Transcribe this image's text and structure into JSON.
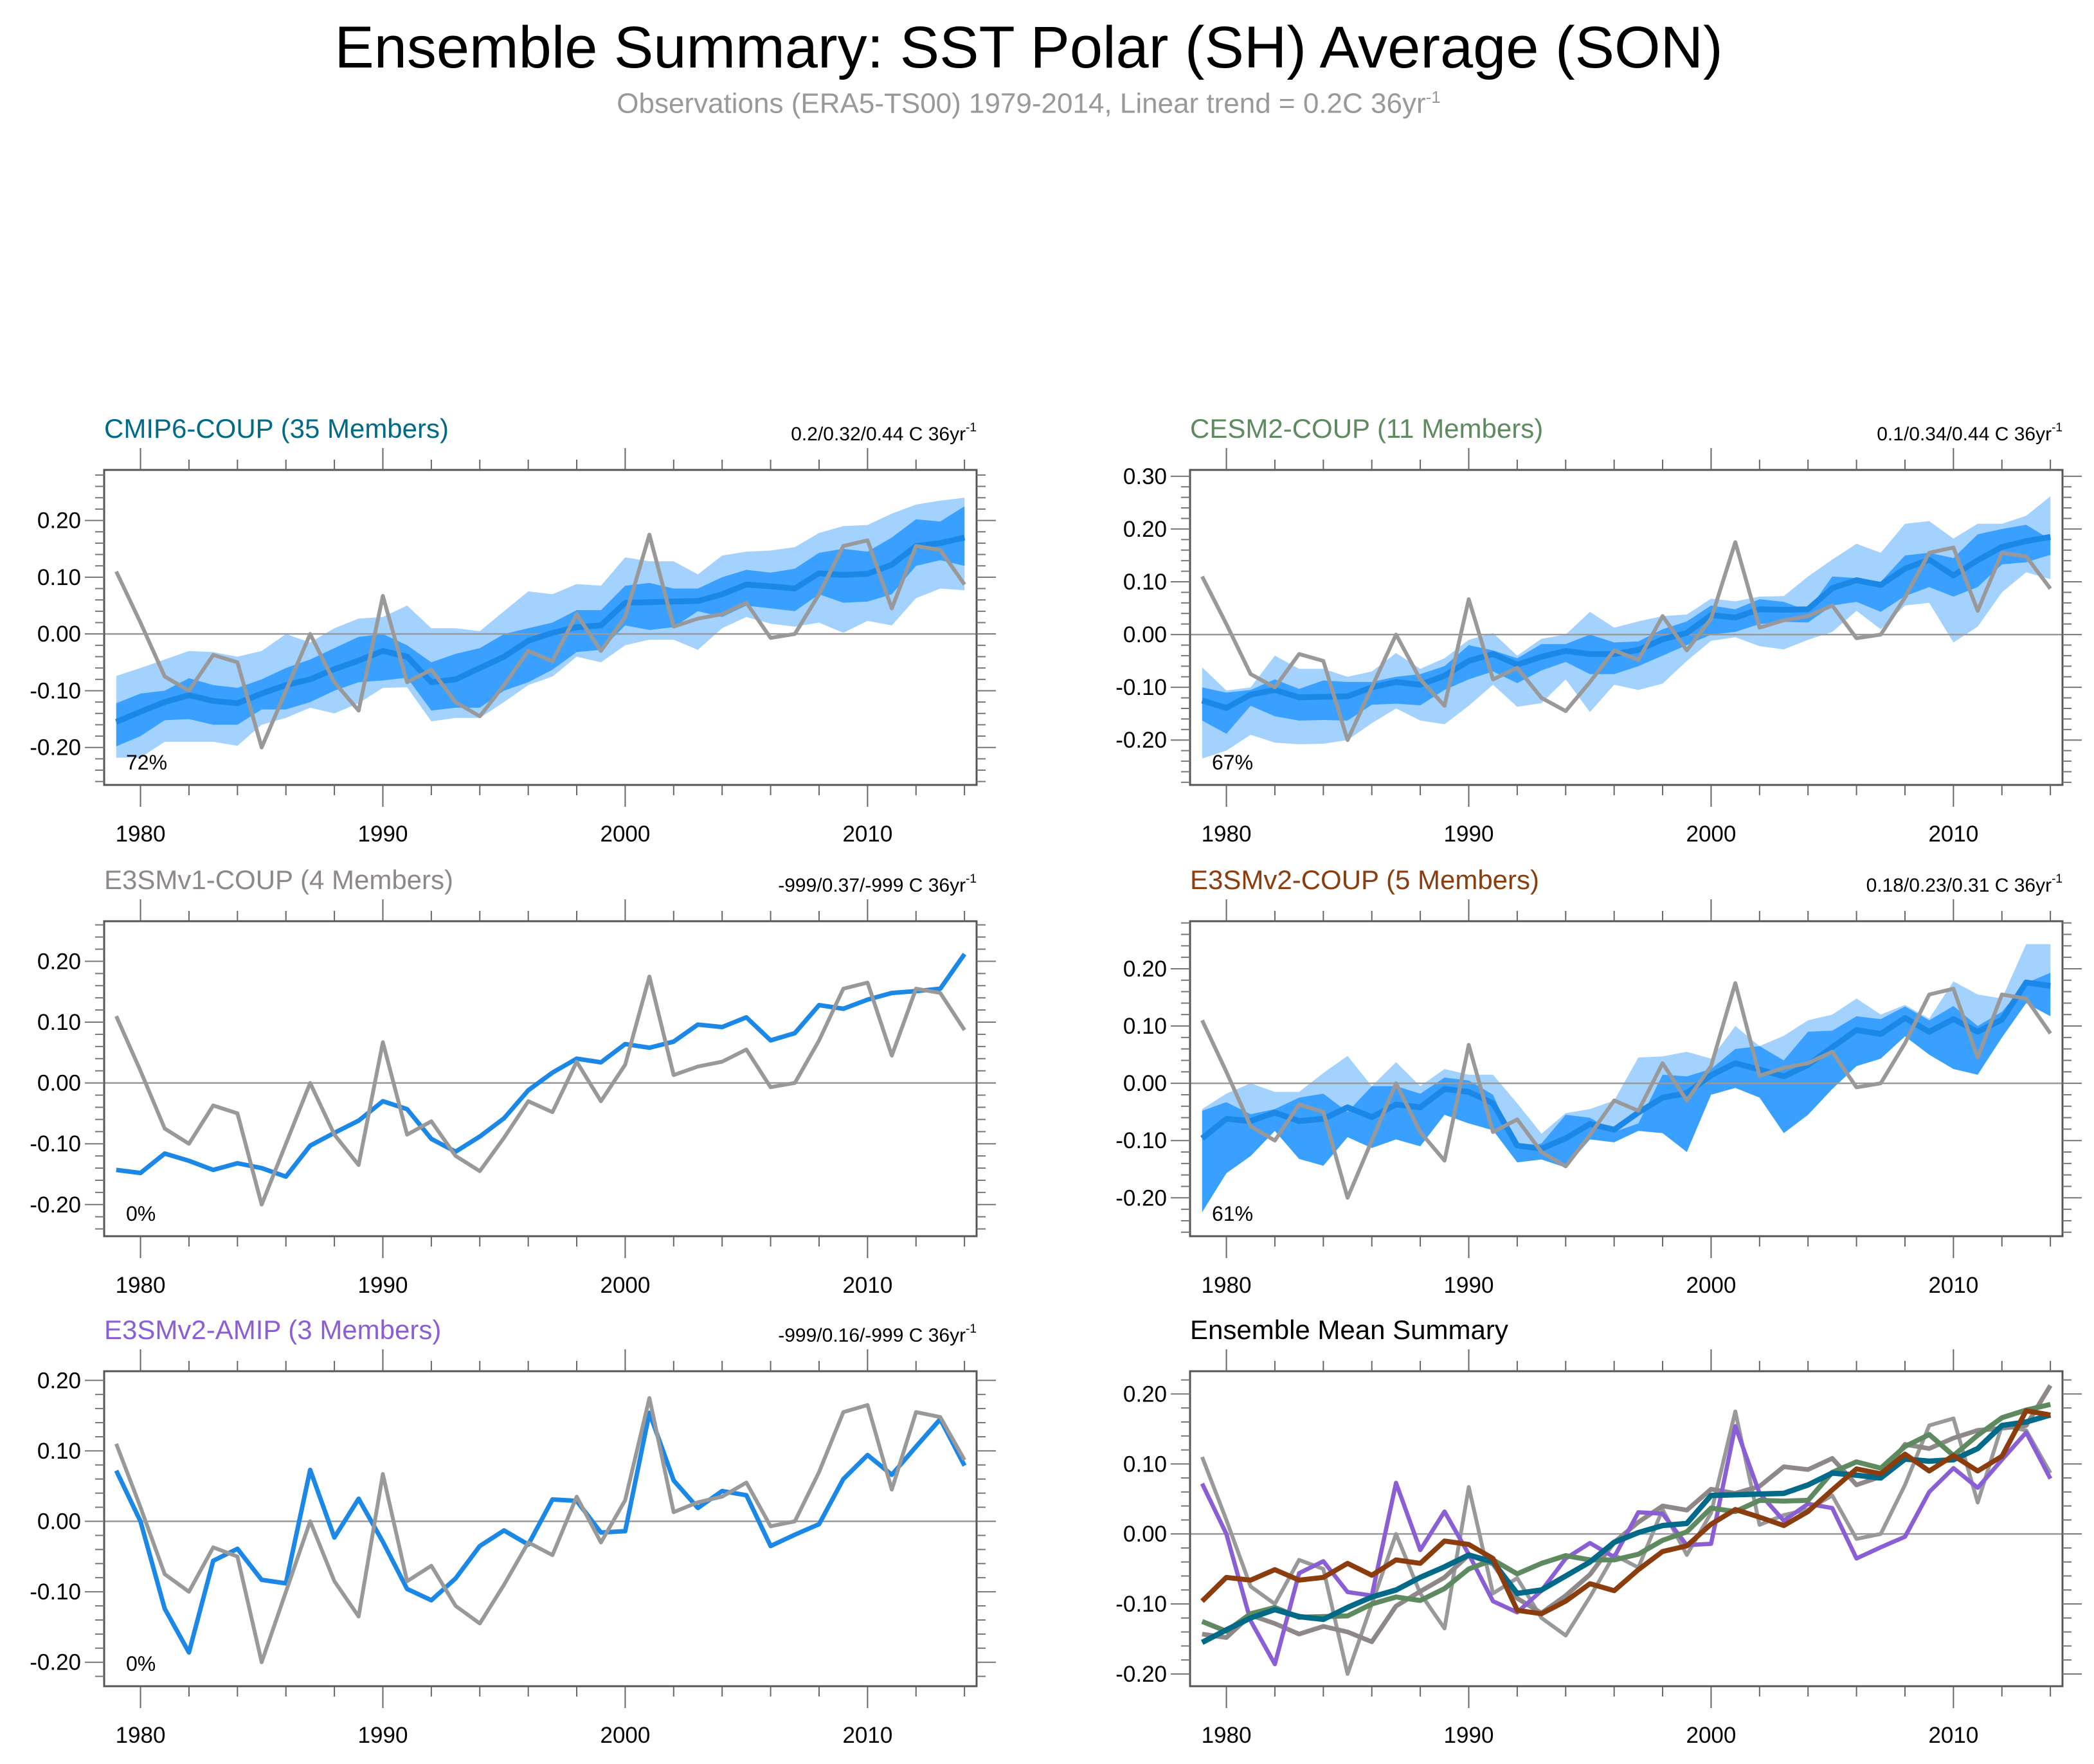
{
  "title": "Ensemble Summary: SST Polar (SH) Average (SON)",
  "subtitle": {
    "text": "Observations (ERA5-TS00) 1979-2014, Linear trend = 0.2C 36yr",
    "sup": "-1"
  },
  "colors": {
    "obs": "#999999",
    "mean": "#1b87e6",
    "band_inner": "#39a0ff",
    "band_outer": "#a3d2ff",
    "frame": "#555555"
  },
  "chart_data": [
    {
      "type": "line",
      "title": "CMIP6-COUP (35 Members)",
      "title_color": "#006a88",
      "trend": {
        "text": "0.2/0.32/0.44 C 36yr",
        "sup": "-1"
      },
      "percent": "72%",
      "x_start": 1979,
      "xlim": [
        1978.5,
        2014.5
      ],
      "ylim": [
        -0.266,
        0.289
      ],
      "xtick_labels": [
        "1980",
        "1990",
        "2000",
        "2010"
      ],
      "ytick_labels": [
        "-0.20",
        "-0.10",
        "0.00",
        "0.10",
        "0.20"
      ],
      "obs": [
        0.11,
        0.02,
        -0.075,
        -0.1,
        -0.037,
        -0.05,
        -0.2,
        -0.1,
        0.0,
        -0.085,
        -0.135,
        0.067,
        -0.085,
        -0.063,
        -0.12,
        -0.145,
        -0.09,
        -0.03,
        -0.048,
        0.035,
        -0.03,
        0.03,
        0.175,
        0.013,
        0.027,
        0.035,
        0.055,
        -0.007,
        0.0,
        0.07,
        0.155,
        0.165,
        0.045,
        0.155,
        0.148,
        0.087
      ],
      "mean": [
        -0.155,
        -0.137,
        -0.12,
        -0.108,
        -0.118,
        -0.122,
        -0.105,
        -0.09,
        -0.08,
        -0.062,
        -0.047,
        -0.03,
        -0.04,
        -0.085,
        -0.08,
        -0.06,
        -0.04,
        -0.012,
        0.002,
        0.012,
        0.015,
        0.055,
        0.056,
        0.057,
        0.058,
        0.07,
        0.087,
        0.084,
        0.08,
        0.107,
        0.104,
        0.106,
        0.122,
        0.155,
        0.16,
        0.17
      ],
      "inner_hi": [
        -0.122,
        -0.105,
        -0.1,
        -0.078,
        -0.09,
        -0.095,
        -0.08,
        -0.06,
        -0.045,
        -0.025,
        -0.005,
        0.0,
        -0.02,
        -0.05,
        -0.035,
        -0.025,
        0.0,
        0.01,
        0.02,
        0.042,
        0.042,
        0.085,
        0.09,
        0.08,
        0.08,
        0.1,
        0.113,
        0.108,
        0.115,
        0.143,
        0.15,
        0.145,
        0.17,
        0.202,
        0.198,
        0.225
      ],
      "inner_lo": [
        -0.198,
        -0.18,
        -0.152,
        -0.15,
        -0.16,
        -0.16,
        -0.133,
        -0.133,
        -0.12,
        -0.1,
        -0.085,
        -0.082,
        -0.077,
        -0.135,
        -0.13,
        -0.13,
        -0.1,
        -0.085,
        -0.063,
        -0.032,
        -0.028,
        0.015,
        0.007,
        0.012,
        0.04,
        0.03,
        0.05,
        0.045,
        0.04,
        0.07,
        0.055,
        0.057,
        0.07,
        0.12,
        0.13,
        0.12
      ],
      "outer_hi": [
        -0.074,
        -0.06,
        -0.045,
        -0.03,
        -0.032,
        -0.04,
        -0.03,
        0.0,
        -0.015,
        0.01,
        0.027,
        0.03,
        0.05,
        0.01,
        0.01,
        0.005,
        0.04,
        0.075,
        0.07,
        0.088,
        0.085,
        0.135,
        0.128,
        0.128,
        0.105,
        0.138,
        0.145,
        0.147,
        0.153,
        0.178,
        0.19,
        0.192,
        0.212,
        0.228,
        0.235,
        0.24
      ],
      "outer_lo": [
        -0.218,
        -0.218,
        -0.19,
        -0.19,
        -0.19,
        -0.197,
        -0.16,
        -0.148,
        -0.13,
        -0.14,
        -0.122,
        -0.095,
        -0.094,
        -0.154,
        -0.148,
        -0.148,
        -0.12,
        -0.09,
        -0.075,
        -0.04,
        -0.05,
        -0.02,
        -0.01,
        -0.01,
        -0.028,
        0.01,
        0.03,
        0.018,
        0.013,
        0.02,
        0.002,
        0.023,
        0.015,
        0.063,
        0.08,
        0.077
      ]
    },
    {
      "type": "line",
      "title": "CESM2-COUP (11 Members)",
      "title_color": "#5e8a60",
      "trend": {
        "text": "0.1/0.34/0.44 C 36yr",
        "sup": "-1"
      },
      "percent": "67%",
      "x_start": 1979,
      "xlim": [
        1978.5,
        2014.5
      ],
      "ylim": [
        -0.285,
        0.312
      ],
      "xtick_labels": [
        "1980",
        "1990",
        "2000",
        "2010"
      ],
      "ytick_labels": [
        "-0.20",
        "-0.10",
        "0.00",
        "0.10",
        "0.20",
        "0.30"
      ],
      "obs": [
        0.11,
        0.02,
        -0.075,
        -0.1,
        -0.037,
        -0.05,
        -0.2,
        -0.1,
        0.0,
        -0.085,
        -0.135,
        0.067,
        -0.085,
        -0.063,
        -0.12,
        -0.145,
        -0.09,
        -0.03,
        -0.048,
        0.035,
        -0.03,
        0.03,
        0.175,
        0.013,
        0.027,
        0.035,
        0.055,
        -0.007,
        0.0,
        0.07,
        0.155,
        0.165,
        0.045,
        0.155,
        0.148,
        0.087
      ],
      "mean": [
        -0.125,
        -0.139,
        -0.114,
        -0.105,
        -0.119,
        -0.118,
        -0.117,
        -0.1,
        -0.09,
        -0.095,
        -0.078,
        -0.05,
        -0.037,
        -0.057,
        -0.042,
        -0.031,
        -0.037,
        -0.037,
        -0.029,
        -0.009,
        0.003,
        0.037,
        0.032,
        0.048,
        0.047,
        0.048,
        0.088,
        0.103,
        0.094,
        0.125,
        0.142,
        0.112,
        0.141,
        0.166,
        0.177,
        0.185
      ],
      "inner_hi": [
        -0.1,
        -0.11,
        -0.105,
        -0.085,
        -0.103,
        -0.087,
        -0.09,
        -0.09,
        -0.08,
        -0.075,
        -0.06,
        -0.02,
        -0.03,
        -0.045,
        -0.018,
        -0.018,
        0.0,
        -0.015,
        -0.013,
        0.01,
        0.025,
        0.055,
        0.048,
        0.067,
        0.062,
        0.045,
        0.11,
        0.107,
        0.1,
        0.15,
        0.155,
        0.145,
        0.19,
        0.2,
        0.208,
        0.18
      ],
      "inner_lo": [
        -0.163,
        -0.188,
        -0.135,
        -0.155,
        -0.163,
        -0.162,
        -0.163,
        -0.133,
        -0.131,
        -0.134,
        -0.105,
        -0.085,
        -0.07,
        -0.092,
        -0.068,
        -0.052,
        -0.075,
        -0.075,
        -0.06,
        -0.04,
        -0.02,
        0.0,
        0.005,
        0.02,
        0.024,
        0.023,
        0.055,
        0.062,
        0.043,
        0.073,
        0.09,
        0.072,
        0.09,
        0.133,
        0.137,
        0.151
      ],
      "outer_hi": [
        -0.062,
        -0.106,
        -0.1,
        -0.04,
        -0.065,
        -0.065,
        -0.08,
        -0.07,
        -0.035,
        -0.065,
        -0.045,
        -0.01,
        0.003,
        -0.04,
        -0.008,
        0.0,
        0.043,
        0.013,
        0.025,
        0.035,
        0.038,
        0.068,
        0.063,
        0.072,
        0.073,
        0.11,
        0.142,
        0.172,
        0.155,
        0.21,
        0.215,
        0.182,
        0.21,
        0.21,
        0.225,
        0.262
      ],
      "outer_lo": [
        -0.235,
        -0.22,
        -0.19,
        -0.205,
        -0.208,
        -0.207,
        -0.2,
        -0.168,
        -0.14,
        -0.163,
        -0.17,
        -0.135,
        -0.095,
        -0.137,
        -0.13,
        -0.085,
        -0.147,
        -0.095,
        -0.105,
        -0.093,
        -0.05,
        -0.012,
        -0.005,
        -0.022,
        -0.028,
        -0.01,
        0.005,
        0.045,
        0.01,
        0.055,
        0.06,
        -0.015,
        0.015,
        0.08,
        0.118,
        0.105
      ]
    },
    {
      "type": "line",
      "title": "E3SMv1-COUP (4 Members)",
      "title_color": "#8f8888",
      "trend": {
        "text": "-999/0.37/-999 C 36yr",
        "sup": "-1"
      },
      "percent": "0%",
      "x_start": 1979,
      "xlim": [
        1978.5,
        2014.5
      ],
      "ylim": [
        -0.252,
        0.266
      ],
      "xtick_labels": [
        "1980",
        "1990",
        "2000",
        "2010"
      ],
      "ytick_labels": [
        "-0.20",
        "-0.10",
        "0.00",
        "0.10",
        "0.20"
      ],
      "obs": [
        0.11,
        0.02,
        -0.075,
        -0.1,
        -0.037,
        -0.05,
        -0.2,
        -0.1,
        0.0,
        -0.085,
        -0.135,
        0.067,
        -0.085,
        -0.063,
        -0.12,
        -0.145,
        -0.09,
        -0.03,
        -0.048,
        0.035,
        -0.03,
        0.03,
        0.175,
        0.013,
        0.027,
        0.035,
        0.055,
        -0.007,
        0.0,
        0.07,
        0.155,
        0.165,
        0.045,
        0.155,
        0.148,
        0.087
      ],
      "mean": [
        -0.143,
        -0.148,
        -0.116,
        -0.128,
        -0.143,
        -0.132,
        -0.14,
        -0.154,
        -0.103,
        -0.082,
        -0.062,
        -0.03,
        -0.043,
        -0.092,
        -0.113,
        -0.088,
        -0.058,
        -0.012,
        0.017,
        0.04,
        0.034,
        0.064,
        0.058,
        0.068,
        0.096,
        0.092,
        0.108,
        0.07,
        0.082,
        0.128,
        0.122,
        0.137,
        0.148,
        0.151,
        0.155,
        0.212
      ]
    },
    {
      "type": "line",
      "title": "E3SMv2-COUP (5 Members)",
      "title_color": "#8b3d0e",
      "trend": {
        "text": "0.18/0.23/0.31 C 36yr",
        "sup": "-1"
      },
      "percent": "61%",
      "x_start": 1979,
      "xlim": [
        1978.5,
        2014.5
      ],
      "ylim": [
        -0.267,
        0.283
      ],
      "xtick_labels": [
        "1980",
        "1990",
        "2000",
        "2010"
      ],
      "ytick_labels": [
        "-0.20",
        "-0.10",
        "0.00",
        "0.10",
        "0.20"
      ],
      "obs": [
        0.11,
        0.02,
        -0.075,
        -0.1,
        -0.037,
        -0.05,
        -0.2,
        -0.1,
        0.0,
        -0.085,
        -0.135,
        0.067,
        -0.085,
        -0.063,
        -0.12,
        -0.145,
        -0.09,
        -0.03,
        -0.048,
        0.035,
        -0.03,
        0.03,
        0.175,
        0.013,
        0.027,
        0.035,
        0.055,
        -0.007,
        0.0,
        0.07,
        0.155,
        0.165,
        0.045,
        0.155,
        0.148,
        0.087
      ],
      "mean": [
        -0.096,
        -0.062,
        -0.066,
        -0.051,
        -0.066,
        -0.062,
        -0.042,
        -0.059,
        -0.037,
        -0.042,
        -0.01,
        -0.015,
        -0.035,
        -0.109,
        -0.114,
        -0.096,
        -0.071,
        -0.081,
        -0.051,
        -0.025,
        -0.017,
        0.014,
        0.035,
        0.024,
        0.012,
        0.032,
        0.063,
        0.093,
        0.086,
        0.114,
        0.09,
        0.112,
        0.09,
        0.111,
        0.176,
        0.17
      ],
      "inner_hi": [
        -0.048,
        -0.033,
        -0.054,
        -0.045,
        -0.025,
        -0.018,
        -0.05,
        -0.005,
        -0.005,
        -0.018,
        0.01,
        0.005,
        -0.02,
        -0.115,
        -0.105,
        -0.055,
        -0.06,
        -0.085,
        -0.07,
        0.015,
        0.012,
        0.025,
        0.06,
        0.065,
        0.04,
        0.09,
        0.092,
        0.117,
        0.112,
        0.134,
        0.11,
        0.135,
        0.1,
        0.125,
        0.175,
        0.193
      ],
      "inner_lo": [
        -0.225,
        -0.157,
        -0.127,
        -0.083,
        -0.132,
        -0.144,
        -0.094,
        -0.113,
        -0.098,
        -0.11,
        -0.055,
        -0.07,
        -0.082,
        -0.138,
        -0.133,
        -0.147,
        -0.098,
        -0.103,
        -0.083,
        -0.087,
        -0.12,
        -0.02,
        -0.008,
        -0.025,
        -0.087,
        -0.055,
        -0.01,
        0.03,
        0.043,
        0.082,
        0.05,
        0.025,
        0.015,
        0.08,
        0.14,
        0.117
      ],
      "outer_hi": [
        -0.045,
        -0.018,
        0.0,
        -0.015,
        -0.015,
        0.018,
        0.048,
        -0.005,
        0.037,
        -0.005,
        0.025,
        0.015,
        0.015,
        -0.035,
        -0.088,
        -0.052,
        -0.045,
        -0.03,
        0.045,
        0.047,
        0.055,
        0.043,
        0.1,
        0.065,
        0.083,
        0.11,
        0.12,
        0.148,
        0.12,
        0.137,
        0.113,
        0.178,
        0.155,
        0.148,
        0.243,
        0.243
      ],
      "outer_lo": [
        -0.225,
        -0.157,
        -0.127,
        -0.083,
        -0.132,
        -0.144,
        -0.094,
        -0.113,
        -0.098,
        -0.11,
        -0.055,
        -0.07,
        -0.082,
        -0.138,
        -0.133,
        -0.147,
        -0.098,
        -0.103,
        -0.083,
        -0.087,
        -0.12,
        -0.02,
        -0.008,
        -0.025,
        -0.087,
        -0.055,
        -0.01,
        0.03,
        0.043,
        0.082,
        0.05,
        0.025,
        0.015,
        0.08,
        0.14,
        0.117
      ]
    },
    {
      "type": "line",
      "title": "E3SMv2-AMIP (3 Members)",
      "title_color": "#8a5fd6",
      "trend": {
        "text": "-999/0.16/-999 C 36yr",
        "sup": "-1"
      },
      "percent": "0%",
      "x_start": 1979,
      "xlim": [
        1978.5,
        2014.5
      ],
      "ylim": [
        -0.234,
        0.213
      ],
      "xtick_labels": [
        "1980",
        "1990",
        "2000",
        "2010"
      ],
      "ytick_labels": [
        "-0.20",
        "-0.10",
        "0.00",
        "0.10",
        "0.20"
      ],
      "obs": [
        0.11,
        0.02,
        -0.075,
        -0.1,
        -0.037,
        -0.05,
        -0.2,
        -0.1,
        0.0,
        -0.085,
        -0.135,
        0.067,
        -0.085,
        -0.063,
        -0.12,
        -0.145,
        -0.09,
        -0.03,
        -0.048,
        0.035,
        -0.03,
        0.03,
        0.175,
        0.013,
        0.027,
        0.035,
        0.055,
        -0.007,
        0.0,
        0.07,
        0.155,
        0.165,
        0.045,
        0.155,
        0.148,
        0.087
      ],
      "mean": [
        0.072,
        0.0,
        -0.124,
        -0.186,
        -0.056,
        -0.039,
        -0.083,
        -0.088,
        0.073,
        -0.023,
        0.032,
        -0.029,
        -0.096,
        -0.112,
        -0.081,
        -0.035,
        -0.013,
        -0.033,
        0.031,
        0.029,
        -0.016,
        -0.014,
        0.154,
        0.058,
        0.019,
        0.043,
        0.037,
        -0.035,
        -0.019,
        -0.004,
        0.06,
        0.094,
        0.066,
        0.106,
        0.145,
        0.079
      ]
    },
    {
      "type": "line",
      "title": "Ensemble Mean Summary",
      "title_color": "#000000",
      "x_start": 1979,
      "xlim": [
        1978.5,
        2014.5
      ],
      "ylim": [
        -0.2175,
        0.2325
      ],
      "xtick_labels": [
        "1980",
        "1990",
        "2000",
        "2010"
      ],
      "ytick_labels": [
        "-0.20",
        "-0.10",
        "0.00",
        "0.10",
        "0.20"
      ],
      "series": [
        {
          "color": "#999999",
          "width": 1,
          "ref": "obs"
        },
        {
          "color": "#8f8888",
          "width": 1.2,
          "ref": 2
        },
        {
          "color": "#8a5fd6",
          "width": 1.1,
          "ref": 4
        },
        {
          "color": "#5e8a60",
          "width": 1.3,
          "ref": 1
        },
        {
          "color": "#006a88",
          "width": 1.4,
          "ref": 0
        },
        {
          "color": "#8b3d0e",
          "width": 1.3,
          "ref": 3
        }
      ]
    }
  ]
}
